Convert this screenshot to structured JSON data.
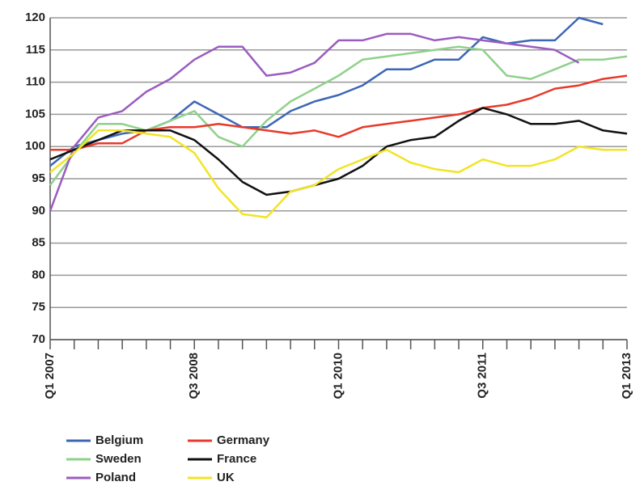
{
  "chart_data": {
    "type": "line",
    "categories": [
      "Q1 2007",
      null,
      null,
      null,
      null,
      null,
      "Q3 2008",
      null,
      null,
      null,
      null,
      null,
      "Q1 2010",
      null,
      null,
      null,
      null,
      null,
      "Q3 2011",
      null,
      null,
      null,
      null,
      null,
      "Q1 2013"
    ],
    "series": [
      {
        "name": "Belgium",
        "color": "#3d66b5",
        "values": [
          97,
          100,
          101,
          102,
          102.5,
          104,
          107,
          105,
          103,
          103,
          105.5,
          107,
          108,
          109.5,
          112,
          112,
          113.5,
          113.5,
          117,
          116,
          116.5,
          116.5,
          120,
          119,
          null
        ]
      },
      {
        "name": "Sweden",
        "color": "#8fd18a",
        "values": [
          94,
          99,
          103.5,
          103.5,
          102.5,
          104,
          105.5,
          101.5,
          100,
          104,
          107,
          109,
          111,
          113.5,
          114,
          114.5,
          115,
          115.5,
          115,
          111,
          110.5,
          112,
          113.5,
          113.5,
          114
        ]
      },
      {
        "name": "Poland",
        "color": "#9a5cc0",
        "values": [
          90,
          100,
          104.5,
          105.5,
          108.5,
          110.5,
          113.5,
          115.5,
          115.5,
          111,
          111.5,
          113,
          116.5,
          116.5,
          117.5,
          117.5,
          116.5,
          117,
          116.5,
          116,
          115.5,
          115,
          113,
          null,
          null
        ]
      },
      {
        "name": "Germany",
        "color": "#e8392a",
        "values": [
          99.5,
          99.5,
          100.5,
          100.5,
          102.5,
          103,
          103,
          103.5,
          103,
          102.5,
          102,
          102.5,
          101.5,
          103,
          103.5,
          104,
          104.5,
          105,
          106,
          106.5,
          107.5,
          109,
          109.5,
          110.5,
          111
        ]
      },
      {
        "name": "France",
        "color": "#111111",
        "values": [
          98,
          99.5,
          101,
          102.5,
          102.5,
          102.5,
          101,
          98,
          94.5,
          92.5,
          93,
          94,
          95,
          97,
          100,
          101,
          101.5,
          104,
          106,
          105,
          103.5,
          103.5,
          104,
          102.5,
          102
        ]
      },
      {
        "name": "UK",
        "color": "#f2e424",
        "values": [
          96,
          99,
          102.5,
          102.5,
          102,
          101.5,
          99,
          93.5,
          89.5,
          89,
          93,
          94,
          96.5,
          98,
          99.5,
          97.5,
          96.5,
          96,
          98,
          97,
          97,
          98,
          100,
          99.5,
          99.5
        ]
      }
    ],
    "ylim": [
      70,
      120
    ],
    "yticks": [
      70,
      75,
      80,
      85,
      90,
      95,
      100,
      105,
      110,
      115,
      120
    ],
    "grid": true,
    "legend": "bottom"
  }
}
